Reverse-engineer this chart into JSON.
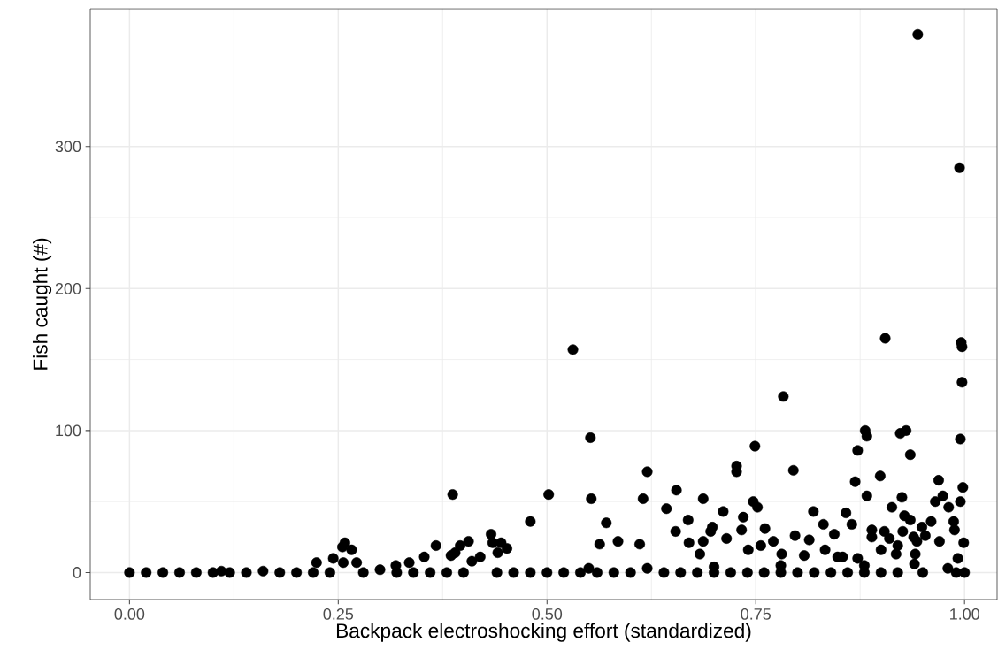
{
  "chart_data": {
    "type": "scatter",
    "xlabel": "Backpack electroshocking effort (standardized)",
    "ylabel": "Fish caught (#)",
    "xlim": [
      -0.047,
      1.039
    ],
    "ylim": [
      -19,
      397
    ],
    "xticks": [
      {
        "value": 0,
        "label": "0.00"
      },
      {
        "value": 0.25,
        "label": "0.25"
      },
      {
        "value": 0.5,
        "label": "0.50"
      },
      {
        "value": 0.75,
        "label": "0.75"
      },
      {
        "value": 1,
        "label": "1.00"
      }
    ],
    "yticks": [
      0,
      100,
      200,
      300
    ],
    "grid": true,
    "marker": "circle",
    "series": [
      {
        "color": "#000000",
        "x": [
          0.0,
          0.02,
          0.04,
          0.06,
          0.08,
          0.1,
          0.11,
          0.12,
          0.14,
          0.16,
          0.18,
          0.2,
          0.22,
          0.224,
          0.24,
          0.244,
          0.255,
          0.256,
          0.258,
          0.266,
          0.272,
          0.28,
          0.3,
          0.319,
          0.32,
          0.335,
          0.34,
          0.353,
          0.36,
          0.367,
          0.38,
          0.385,
          0.387,
          0.39,
          0.396,
          0.4,
          0.406,
          0.41,
          0.42,
          0.433,
          0.435,
          0.44,
          0.441,
          0.445,
          0.452,
          0.46,
          0.48,
          0.48,
          0.5,
          0.502,
          0.52,
          0.531,
          0.54,
          0.55,
          0.552,
          0.553,
          0.56,
          0.563,
          0.571,
          0.58,
          0.585,
          0.6,
          0.611,
          0.615,
          0.62,
          0.62,
          0.64,
          0.643,
          0.654,
          0.655,
          0.66,
          0.669,
          0.67,
          0.68,
          0.683,
          0.687,
          0.687,
          0.696,
          0.698,
          0.7,
          0.7,
          0.711,
          0.715,
          0.72,
          0.727,
          0.727,
          0.733,
          0.735,
          0.74,
          0.741,
          0.747,
          0.749,
          0.752,
          0.756,
          0.76,
          0.761,
          0.771,
          0.78,
          0.78,
          0.781,
          0.783,
          0.795,
          0.797,
          0.8,
          0.808,
          0.814,
          0.819,
          0.82,
          0.831,
          0.833,
          0.84,
          0.844,
          0.848,
          0.854,
          0.858,
          0.86,
          0.865,
          0.869,
          0.872,
          0.872,
          0.88,
          0.88,
          0.881,
          0.883,
          0.883,
          0.889,
          0.889,
          0.899,
          0.9,
          0.9,
          0.904,
          0.905,
          0.91,
          0.913,
          0.918,
          0.92,
          0.92,
          0.923,
          0.925,
          0.926,
          0.928,
          0.93,
          0.935,
          0.935,
          0.939,
          0.94,
          0.941,
          0.943,
          0.944,
          0.949,
          0.95,
          0.953,
          0.96,
          0.965,
          0.969,
          0.97,
          0.974,
          0.98,
          0.981,
          0.987,
          0.988,
          0.99,
          0.992,
          0.994,
          0.995,
          0.995,
          0.996,
          0.997,
          0.997,
          0.998,
          0.999,
          1.0
        ],
        "values": [
          0,
          0,
          0,
          0,
          0,
          0,
          1,
          0,
          0,
          1,
          0,
          0,
          0,
          7,
          0,
          10,
          18,
          7,
          21,
          16,
          7,
          0,
          2,
          5,
          0,
          7,
          0,
          11,
          0,
          19,
          0,
          12,
          55,
          14,
          19,
          0,
          22,
          8,
          11,
          27,
          21,
          0,
          14,
          21,
          17,
          0,
          36,
          0,
          0,
          55,
          0,
          157,
          0,
          3,
          95,
          52,
          0,
          20,
          35,
          0,
          22,
          0,
          20,
          52,
          3,
          71,
          0,
          45,
          29,
          58,
          0,
          37,
          21,
          0,
          13,
          52,
          22,
          29,
          32,
          4,
          0,
          43,
          24,
          0,
          75,
          71,
          30,
          39,
          0,
          16,
          50,
          89,
          46,
          19,
          0,
          31,
          22,
          5,
          0,
          13,
          124,
          72,
          26,
          0,
          12,
          23,
          43,
          0,
          34,
          16,
          0,
          27,
          11,
          11,
          42,
          0,
          34,
          64,
          86,
          10,
          5,
          0,
          100,
          96,
          54,
          30,
          25,
          68,
          16,
          0,
          29,
          165,
          24,
          46,
          13,
          19,
          0,
          98,
          53,
          29,
          40,
          100,
          83,
          37,
          25,
          6,
          13,
          22,
          379,
          32,
          0,
          26,
          36,
          50,
          65,
          22,
          54,
          3,
          46,
          36,
          30,
          0,
          10,
          285,
          50,
          94,
          162,
          159,
          134,
          60,
          21,
          0
        ]
      }
    ]
  }
}
